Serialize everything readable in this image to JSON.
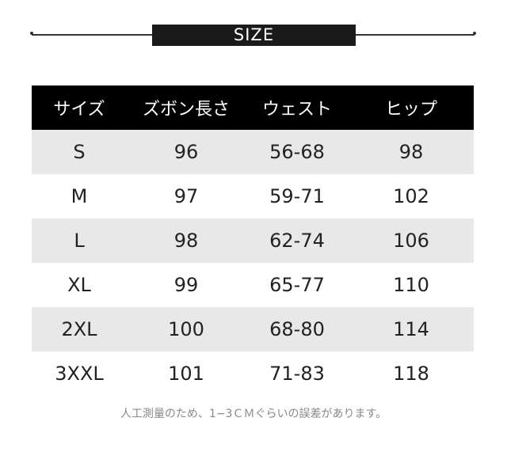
{
  "title": "SIZE",
  "headers": [
    "サイズ",
    "ズボン長さ",
    "ウェスト",
    "ヒップ"
  ],
  "rows": [
    [
      "S",
      "96",
      "56-68",
      "98"
    ],
    [
      "M",
      "97",
      "59-71",
      "102"
    ],
    [
      "L",
      "98",
      "62-74",
      "106"
    ],
    [
      "XL",
      "99",
      "65-77",
      "110"
    ],
    [
      "2XL",
      "100",
      "68-80",
      "114"
    ],
    [
      "3XXL",
      "101",
      "71-83",
      "118"
    ]
  ],
  "note": "人工測量のため、1−3ＣＭぐらいの誤差があります。",
  "colors": {
    "header_bg": "#000000",
    "stripe": "#e8e8e8"
  }
}
